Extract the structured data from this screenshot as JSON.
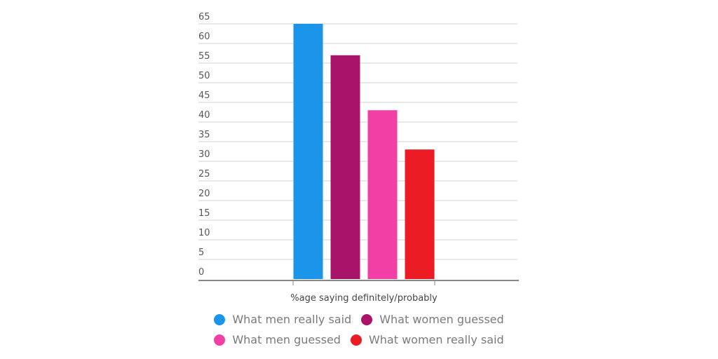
{
  "chart_data": {
    "type": "bar",
    "categories": [
      "%age saying definitely/probably"
    ],
    "xlabel": "%age saying definitely/probably",
    "ylabel": "",
    "title": "",
    "ylim": [
      0,
      65
    ],
    "yticks": [
      0,
      5,
      10,
      15,
      20,
      25,
      30,
      35,
      40,
      45,
      50,
      55,
      60,
      65
    ],
    "grid": true,
    "legend_position": "bottom",
    "series": [
      {
        "name": "What men really said",
        "values": [
          65
        ],
        "color": "#1a95ea"
      },
      {
        "name": "What women guessed",
        "values": [
          57
        ],
        "color": "#a8146a"
      },
      {
        "name": "What men guessed",
        "values": [
          43
        ],
        "color": "#f23fa6"
      },
      {
        "name": "What women really said",
        "values": [
          33
        ],
        "color": "#ec1c24"
      }
    ]
  },
  "legend": {
    "rows": [
      [
        {
          "label": "What men really said",
          "color": "#1a95ea"
        },
        {
          "label": "What women guessed",
          "color": "#a8146a"
        }
      ],
      [
        {
          "label": "What men guessed",
          "color": "#f23fa6"
        },
        {
          "label": "What women really said",
          "color": "#ec1c24"
        }
      ]
    ]
  }
}
